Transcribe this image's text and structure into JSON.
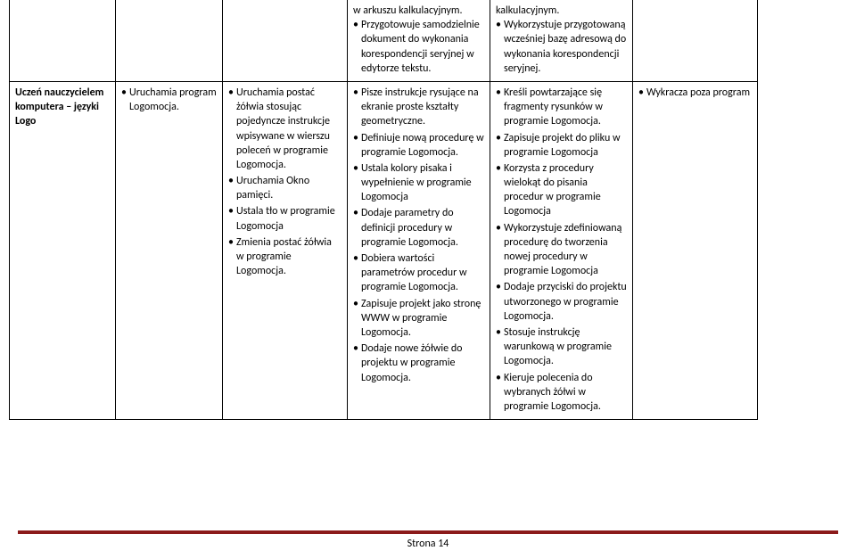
{
  "colors": {
    "rule": "#8b1a1a",
    "text": "#000000",
    "bg": "#ffffff"
  },
  "fontsize_pt": 9,
  "top_row": {
    "c0": "",
    "c1": "",
    "c2": "",
    "c3": "w arkuszu kalkulacyjnym.\n• Przygotowuje samodzielnie dokument do wykonania korespondencji seryjnej w edytorze tekstu.",
    "c4": "kalkulacyjnym.\n• Wykorzystuje przygotowaną wcześniej bazę adresową do wykonania korespondencji seryjnej.",
    "c5": ""
  },
  "main_row": {
    "c0": "Uczeń nauczycielem komputera – języki Logo",
    "c1": [
      "Uruchamia program Logomocja."
    ],
    "c2": [
      "Uruchamia postać żółwia stosując pojedyncze instrukcje wpisywane w wierszu poleceń w programie Logomocja.",
      "Uruchamia Okno pamięci.",
      "Ustala tło w programie Logomocja",
      "Zmienia postać żółwia w programie Logomocja."
    ],
    "c3": [
      "Pisze instrukcje rysujące na ekranie proste kształty geometryczne.",
      "Definiuje nową procedurę w programie Logomocja.",
      "Ustala kolory pisaka i wypełnienie w programie Logomocja",
      "Dodaje parametry do definicji procedury w programie Logomocja.",
      "Dobiera wartości parametrów procedur w programie Logomocja.",
      "Zapisuje projekt jako stronę WWW w programie Logomocja.",
      "Dodaje nowe żółwie do projektu w programie Logomocja."
    ],
    "c4": [
      "Kreśli powtarzające się fragmenty rysunków w programie Logomocja.",
      "Zapisuje projekt do pliku w programie Logomocja",
      "Korzysta z procedury wielokąt do pisania procedur w programie Logomocja",
      " Wykorzystuje zdefiniowaną procedurę do tworzenia nowej procedury w programie Logomocja",
      "Dodaje przyciski do projektu utworzonego w programie Logomocja.",
      "Stosuje instrukcję warunkową w programie Logomocja.",
      "Kieruje polecenia do wybranych żółwi w programie Logomocja."
    ],
    "c5": [
      "Wykracza poza program"
    ]
  },
  "footer": "Strona 14"
}
